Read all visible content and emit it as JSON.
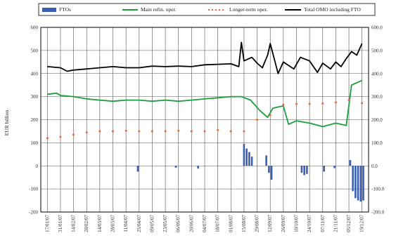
{
  "chart_data": {
    "type": "bar",
    "x": [
      "17/01/07",
      "31/01/07",
      "14/02/07",
      "28/02/07",
      "14/03/07",
      "28/03/07",
      "11/04/07",
      "25/04/07",
      "09/05/07",
      "23/05/07",
      "06/06/07",
      "20/06/07",
      "04/07/07",
      "18/07/07",
      "01/08/07",
      "15/08/07",
      "29/08/07",
      "12/09/07",
      "26/09/07",
      "10/10/07",
      "24/10/07",
      "07/11/07",
      "21/11/07",
      "05/12/07",
      "19/12/07"
    ],
    "ylabel": "EUR billion",
    "ylim": [
      -200,
      600
    ],
    "y_ticks": [
      "600",
      "500",
      "400",
      "300",
      "200",
      "100",
      "0",
      "-100",
      "-200"
    ],
    "y2_ticks": [
      "600.0",
      "500.0",
      "400.0",
      "300.0",
      "200.0",
      "100.0",
      "0.0",
      "-100.0",
      "-200.0"
    ],
    "grid": true,
    "legend": "top",
    "series": [
      {
        "name": "FTOs",
        "style": "bar",
        "color": "#3a5fb5",
        "points": [
          {
            "x": 6.9,
            "y": -25
          },
          {
            "x": 9.8,
            "y": -8
          },
          {
            "x": 11.5,
            "y": -12
          },
          {
            "x": 15.0,
            "y": 95
          },
          {
            "x": 15.2,
            "y": 75
          },
          {
            "x": 15.4,
            "y": 60
          },
          {
            "x": 15.6,
            "y": 40
          },
          {
            "x": 16.7,
            "y": 45
          },
          {
            "x": 16.9,
            "y": -30
          },
          {
            "x": 17.1,
            "y": -60
          },
          {
            "x": 19.4,
            "y": -30
          },
          {
            "x": 19.6,
            "y": -40
          },
          {
            "x": 19.8,
            "y": -35
          },
          {
            "x": 21.1,
            "y": -25
          },
          {
            "x": 21.9,
            "y": -10
          },
          {
            "x": 23.1,
            "y": 25
          },
          {
            "x": 23.3,
            "y": -110
          },
          {
            "x": 23.5,
            "y": -140
          },
          {
            "x": 23.7,
            "y": -150
          },
          {
            "x": 23.9,
            "y": -155
          },
          {
            "x": 24.1,
            "y": -150
          }
        ]
      },
      {
        "name": "Main refin. oper.",
        "style": "line",
        "color": "#1aa03a",
        "points": [
          [
            0,
            310
          ],
          [
            0.7,
            315
          ],
          [
            1,
            305
          ],
          [
            2,
            300
          ],
          [
            3,
            290
          ],
          [
            4,
            285
          ],
          [
            5,
            280
          ],
          [
            6,
            285
          ],
          [
            7,
            285
          ],
          [
            8,
            280
          ],
          [
            9,
            285
          ],
          [
            10,
            280
          ],
          [
            11,
            285
          ],
          [
            12,
            290
          ],
          [
            13,
            295
          ],
          [
            14,
            300
          ],
          [
            14.8,
            300
          ],
          [
            15.5,
            285
          ],
          [
            16.2,
            240
          ],
          [
            16.8,
            210
          ],
          [
            17.2,
            250
          ],
          [
            18,
            260
          ],
          [
            18.4,
            180
          ],
          [
            19,
            195
          ],
          [
            20,
            185
          ],
          [
            21,
            170
          ],
          [
            22,
            185
          ],
          [
            22.8,
            175
          ],
          [
            23.2,
            350
          ],
          [
            24,
            370
          ]
        ]
      },
      {
        "name": "Longer-term oper.",
        "style": "dots",
        "color": "#ee6633",
        "points": [
          [
            0,
            120
          ],
          [
            1,
            125
          ],
          [
            2,
            135
          ],
          [
            3,
            145
          ],
          [
            4,
            150
          ],
          [
            5,
            150
          ],
          [
            6,
            152
          ],
          [
            7,
            150
          ],
          [
            8,
            150
          ],
          [
            9,
            150
          ],
          [
            10,
            152
          ],
          [
            11,
            150
          ],
          [
            12,
            150
          ],
          [
            13,
            155
          ],
          [
            14,
            150
          ],
          [
            15,
            150
          ],
          [
            16,
            200
          ],
          [
            17,
            220
          ],
          [
            18,
            265
          ],
          [
            19,
            268
          ],
          [
            20,
            268
          ],
          [
            21,
            270
          ],
          [
            22,
            275
          ],
          [
            23,
            285
          ],
          [
            24,
            272
          ]
        ]
      },
      {
        "name": "Total OMO including FTO",
        "style": "line",
        "color": "#000000",
        "points": [
          [
            0,
            430
          ],
          [
            1,
            425
          ],
          [
            1.5,
            410
          ],
          [
            2,
            415
          ],
          [
            3,
            420
          ],
          [
            4,
            425
          ],
          [
            5,
            430
          ],
          [
            6,
            425
          ],
          [
            7,
            425
          ],
          [
            8,
            432
          ],
          [
            9,
            430
          ],
          [
            10,
            432
          ],
          [
            11,
            430
          ],
          [
            12,
            438
          ],
          [
            13,
            440
          ],
          [
            14,
            442
          ],
          [
            14.6,
            430
          ],
          [
            14.8,
            535
          ],
          [
            15,
            455
          ],
          [
            15.6,
            470
          ],
          [
            16,
            445
          ],
          [
            16.4,
            425
          ],
          [
            16.8,
            480
          ],
          [
            17,
            530
          ],
          [
            17.6,
            400
          ],
          [
            18,
            450
          ],
          [
            18.8,
            420
          ],
          [
            19.3,
            470
          ],
          [
            20,
            455
          ],
          [
            20.6,
            405
          ],
          [
            21,
            445
          ],
          [
            21.6,
            420
          ],
          [
            22,
            450
          ],
          [
            22.4,
            430
          ],
          [
            22.8,
            465
          ],
          [
            23.2,
            495
          ],
          [
            23.6,
            480
          ],
          [
            24,
            530
          ]
        ]
      }
    ]
  }
}
